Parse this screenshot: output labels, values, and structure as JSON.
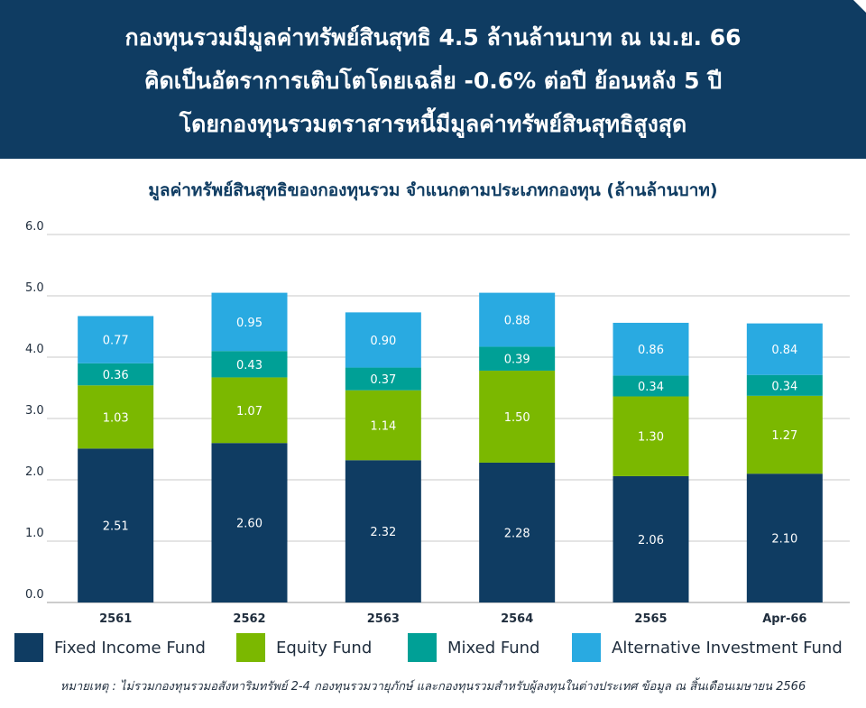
{
  "header": {
    "lines": [
      "กองทุนรวมมีมูลค่าทรัพย์สินสุทธิ 4.5 ล้านล้านบาท ณ เม.ย. 66",
      "คิดเป็นอัตราการเติบโตโดยเฉลี่ย -0.6% ต่อปี ย้อนหลัง 5 ปี",
      "โดยกองทุนรวมตราสารหนี้มีมูลค่าทรัพย์สินสุทธิสูงสุด"
    ]
  },
  "chart_data": {
    "type": "bar",
    "stacked": true,
    "title": "มูลค่าทรัพย์สินสุทธิของกองทุนรวม จำแนกตามประเภทกองทุน (ล้านล้านบาท)",
    "categories": [
      "2561",
      "2562",
      "2563",
      "2564",
      "2565",
      "Apr-66"
    ],
    "ylim": [
      0,
      6
    ],
    "yticks": [
      "0.0",
      "1.0",
      "2.0",
      "3.0",
      "4.0",
      "5.0",
      "6.0"
    ],
    "grid": true,
    "legend_position": "bottom",
    "series": [
      {
        "name": "Fixed Income Fund",
        "color": "#0f3c62",
        "values": [
          2.51,
          2.6,
          2.32,
          2.28,
          2.06,
          2.1
        ],
        "labels": [
          "2.51",
          "2.60",
          "2.32",
          "2.28",
          "2.06",
          "2.10"
        ]
      },
      {
        "name": "Equity Fund",
        "color": "#7bb800",
        "values": [
          1.03,
          1.07,
          1.14,
          1.5,
          1.3,
          1.27
        ],
        "labels": [
          "1.03",
          "1.07",
          "1.14",
          "1.50",
          "1.30",
          "1.27"
        ]
      },
      {
        "name": "Mixed Fund",
        "color": "#00a096",
        "values": [
          0.36,
          0.43,
          0.37,
          0.39,
          0.34,
          0.34
        ],
        "labels": [
          "0.36",
          "0.43",
          "0.37",
          "0.39",
          "0.34",
          "0.34"
        ]
      },
      {
        "name": "Alternative Investment Fund",
        "color": "#29aae1",
        "values": [
          0.77,
          0.95,
          0.9,
          0.88,
          0.86,
          0.84
        ],
        "labels": [
          "0.77",
          "0.95",
          "0.90",
          "0.88",
          "0.86",
          "0.84"
        ]
      }
    ]
  },
  "footnote": "หมายเหตุ : ไม่รวมกองทุนรวมอสังหาริมทรัพย์ 2-4 กองทุนรวมวายุภักษ์ และกองทุนรวมสำหรับผู้ลงทุนในต่างประเทศ ข้อมูล ณ สิ้นเดือนเมษายน 2566"
}
